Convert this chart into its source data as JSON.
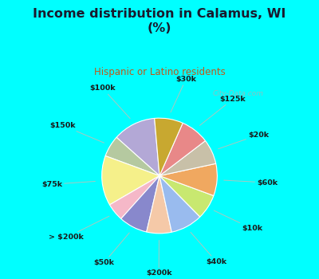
{
  "title": "Income distribution in Calamus, WI\n(%)",
  "subtitle": "Hispanic or Latino residents",
  "bg_cyan": "#00FFFF",
  "bg_chart": "#e8f5ee",
  "title_color": "#1a1a2e",
  "subtitle_color": "#c05818",
  "watermark": "City-Data.com",
  "labels": [
    "$100k",
    "$150k",
    "$75k",
    "> $200k",
    "$50k",
    "$200k",
    "$40k",
    "$10k",
    "$60k",
    "$20k",
    "$125k",
    "$30k"
  ],
  "values": [
    12,
    6,
    14,
    5,
    8,
    7,
    9,
    7,
    9,
    7,
    8,
    8
  ],
  "colors": [
    "#b3a8d6",
    "#b5c9a0",
    "#f5f08a",
    "#f5b8c8",
    "#8888cc",
    "#f5c9a8",
    "#99bbee",
    "#c8e870",
    "#f0a860",
    "#c8c0a8",
    "#e88888",
    "#c8a830"
  ],
  "startangle": 95
}
